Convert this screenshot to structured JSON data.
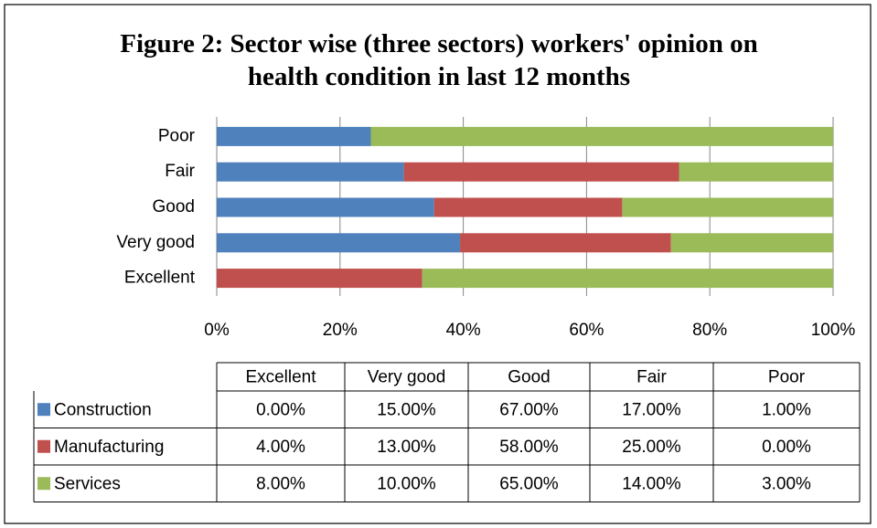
{
  "chart_data": {
    "type": "bar",
    "orientation": "horizontal",
    "stack": "percent",
    "title": "Figure 2: Sector wise (three sectors) workers' opinion on health condition in last 12 months",
    "categories": [
      "Excellent",
      "Very good",
      "Good",
      "Fair",
      "Poor"
    ],
    "series": [
      {
        "name": "Construction",
        "color": "#4f81bd",
        "values": [
          0,
          15,
          67,
          17,
          1
        ],
        "value_labels": [
          "0.00%",
          "15.00%",
          "67.00%",
          "17.00%",
          "1.00%"
        ]
      },
      {
        "name": "Manufacturing",
        "color": "#c0504d",
        "values": [
          4,
          13,
          58,
          25,
          0
        ],
        "value_labels": [
          "4.00%",
          "13.00%",
          "58.00%",
          "25.00%",
          "0.00%"
        ]
      },
      {
        "name": "Services",
        "color": "#9bbb59",
        "values": [
          8,
          10,
          65,
          14,
          3
        ],
        "value_labels": [
          "8.00%",
          "10.00%",
          "65.00%",
          "14.00%",
          "3.00%"
        ]
      }
    ],
    "xlim": [
      0,
      100
    ],
    "xticks": [
      {
        "value": 0,
        "label": "0%"
      },
      {
        "value": 20,
        "label": "20%"
      },
      {
        "value": 40,
        "label": "40%"
      },
      {
        "value": 60,
        "label": "60%"
      },
      {
        "value": 80,
        "label": "80%"
      },
      {
        "value": 100,
        "label": "100%"
      }
    ],
    "grid": true,
    "data_table": true
  }
}
